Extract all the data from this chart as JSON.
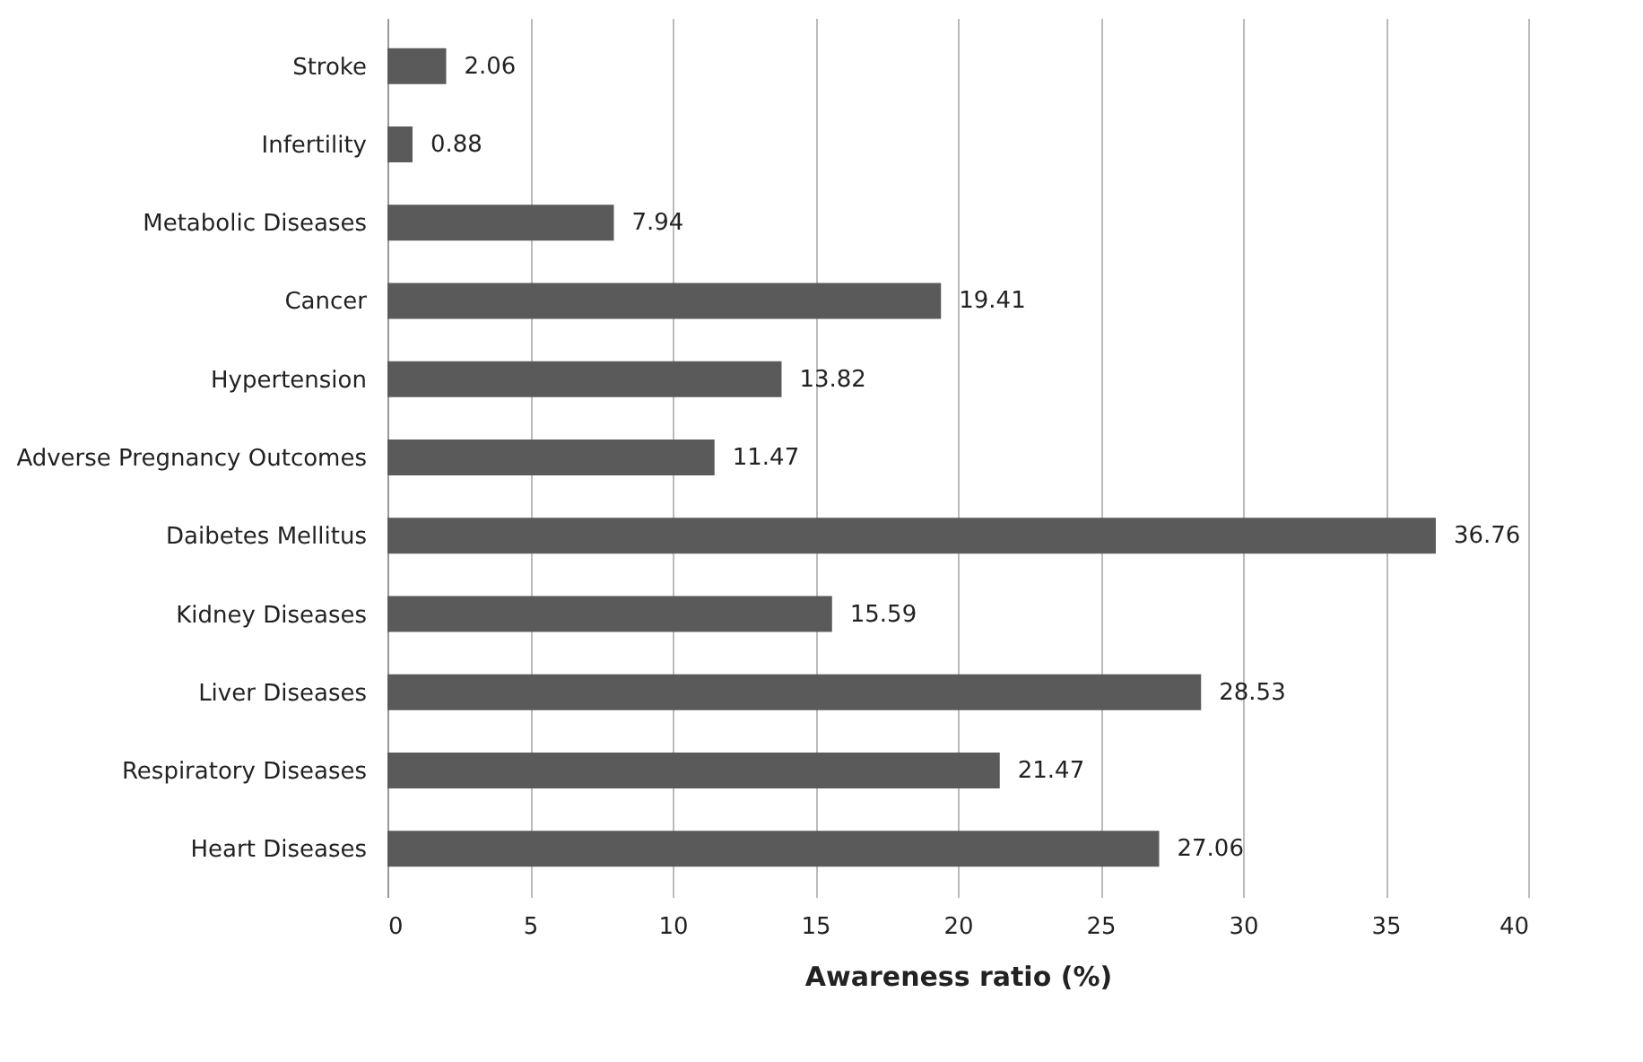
{
  "chart_data": {
    "type": "bar",
    "orientation": "horizontal",
    "xlabel": "Awareness ratio (%)",
    "categories": [
      "Stroke",
      "Infertility",
      "Metabolic Diseases",
      "Cancer",
      "Hypertension",
      "Adverse Pregnancy Outcomes",
      "Daibetes Mellitus",
      "Kidney Diseases",
      "Liver Diseases",
      "Respiratory Diseases",
      "Heart Diseases"
    ],
    "values": [
      2.06,
      0.88,
      7.94,
      19.41,
      13.82,
      11.47,
      36.76,
      15.59,
      28.53,
      21.47,
      27.06
    ],
    "color": "#5a5a5a",
    "xlim": [
      0,
      40
    ],
    "xticks": [
      0,
      5,
      10,
      15,
      20,
      25,
      30,
      35,
      40
    ],
    "grid": "x",
    "data_labels": true
  }
}
